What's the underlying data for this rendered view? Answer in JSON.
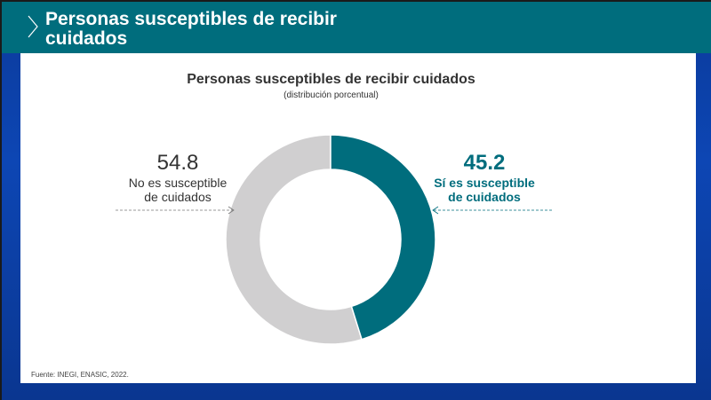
{
  "header": {
    "title": "Personas susceptibles de recibir cuidados"
  },
  "chart_data": {
    "type": "pie",
    "title": "Personas susceptibles de recibir cuidados",
    "subtitle": "(distribución porcentual)",
    "slices": [
      {
        "label": "Sí es susceptible de cuidados",
        "value": 45.2,
        "value_label": "45.2",
        "color": "#006d7d"
      },
      {
        "label": "No es susceptible de cuidados",
        "value": 54.8,
        "value_label": "54.8",
        "color": "#d0cfd0"
      }
    ],
    "donut": true
  },
  "source": "Fuente: INEGI, ENASIC, 2022."
}
